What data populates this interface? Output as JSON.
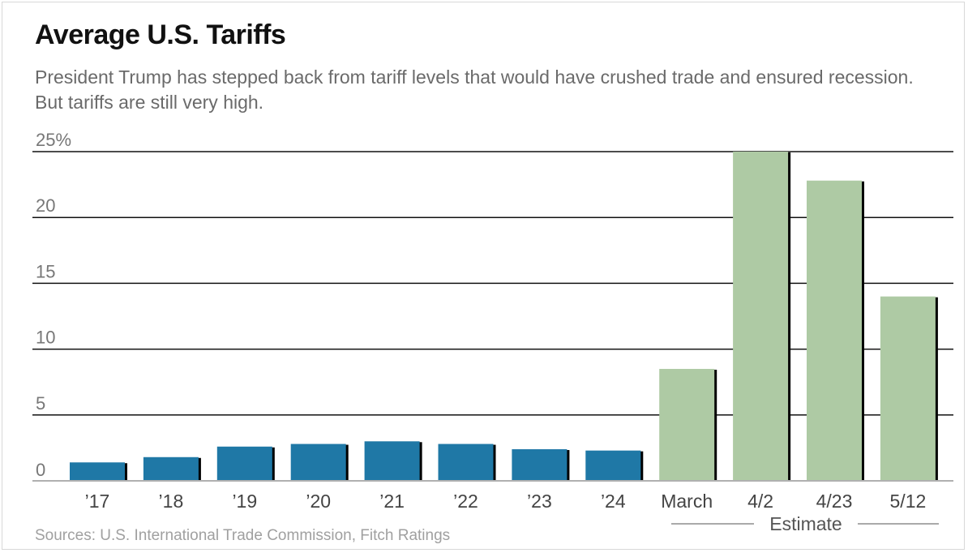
{
  "chart_data": {
    "type": "bar",
    "title": "Average U.S. Tariffs",
    "subtitle": "President Trump has stepped back from tariff levels that would have crushed trade and ensured recession. But tariffs are still very high.",
    "categories": [
      "’17",
      "’18",
      "’19",
      "’20",
      "’21",
      "’22",
      "’23",
      "’24",
      "March",
      "4/2",
      "4/23",
      "5/12"
    ],
    "values": [
      1.4,
      1.8,
      2.6,
      2.8,
      3.0,
      2.8,
      2.4,
      2.3,
      8.5,
      25.0,
      22.8,
      14.0
    ],
    "estimate": [
      false,
      false,
      false,
      false,
      false,
      false,
      false,
      false,
      true,
      true,
      true,
      true
    ],
    "yticks": [
      "0",
      "5",
      "10",
      "15",
      "20",
      "25%"
    ],
    "ytick_values": [
      0,
      5,
      10,
      15,
      20,
      25
    ],
    "ylim": [
      0,
      25
    ],
    "xlabel": "",
    "ylabel": "",
    "estimate_label": "Estimate",
    "source": "Sources: U.S. International Trade Commission, Fitch Ratings",
    "colors": {
      "actual": "#1f78a6",
      "estimate": "#aecaa4",
      "grid": "#111111",
      "baseline": "#b0b0b0"
    }
  }
}
